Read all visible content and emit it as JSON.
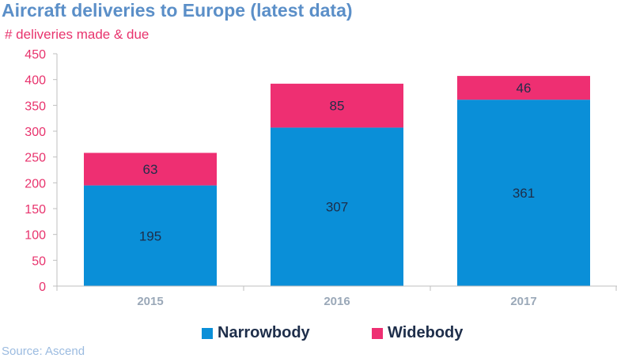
{
  "chart_data": {
    "type": "bar",
    "stacked": true,
    "title": "Aircraft deliveries to Europe (latest data)",
    "ylabel": "# deliveries made & due",
    "xlabel": "",
    "categories": [
      "2015",
      "2016",
      "2017"
    ],
    "series": [
      {
        "name": "Narrowbody",
        "values": [
          195,
          307,
          361
        ],
        "color": "#0a8fd8"
      },
      {
        "name": "Widebody",
        "values": [
          63,
          85,
          46
        ],
        "color": "#ee2f72"
      }
    ],
    "ylim": [
      0,
      450
    ],
    "yticks": [
      0,
      50,
      100,
      150,
      200,
      250,
      300,
      350,
      400,
      450
    ],
    "grid": false,
    "legend": "bottom",
    "source": "Source: Ascend"
  }
}
